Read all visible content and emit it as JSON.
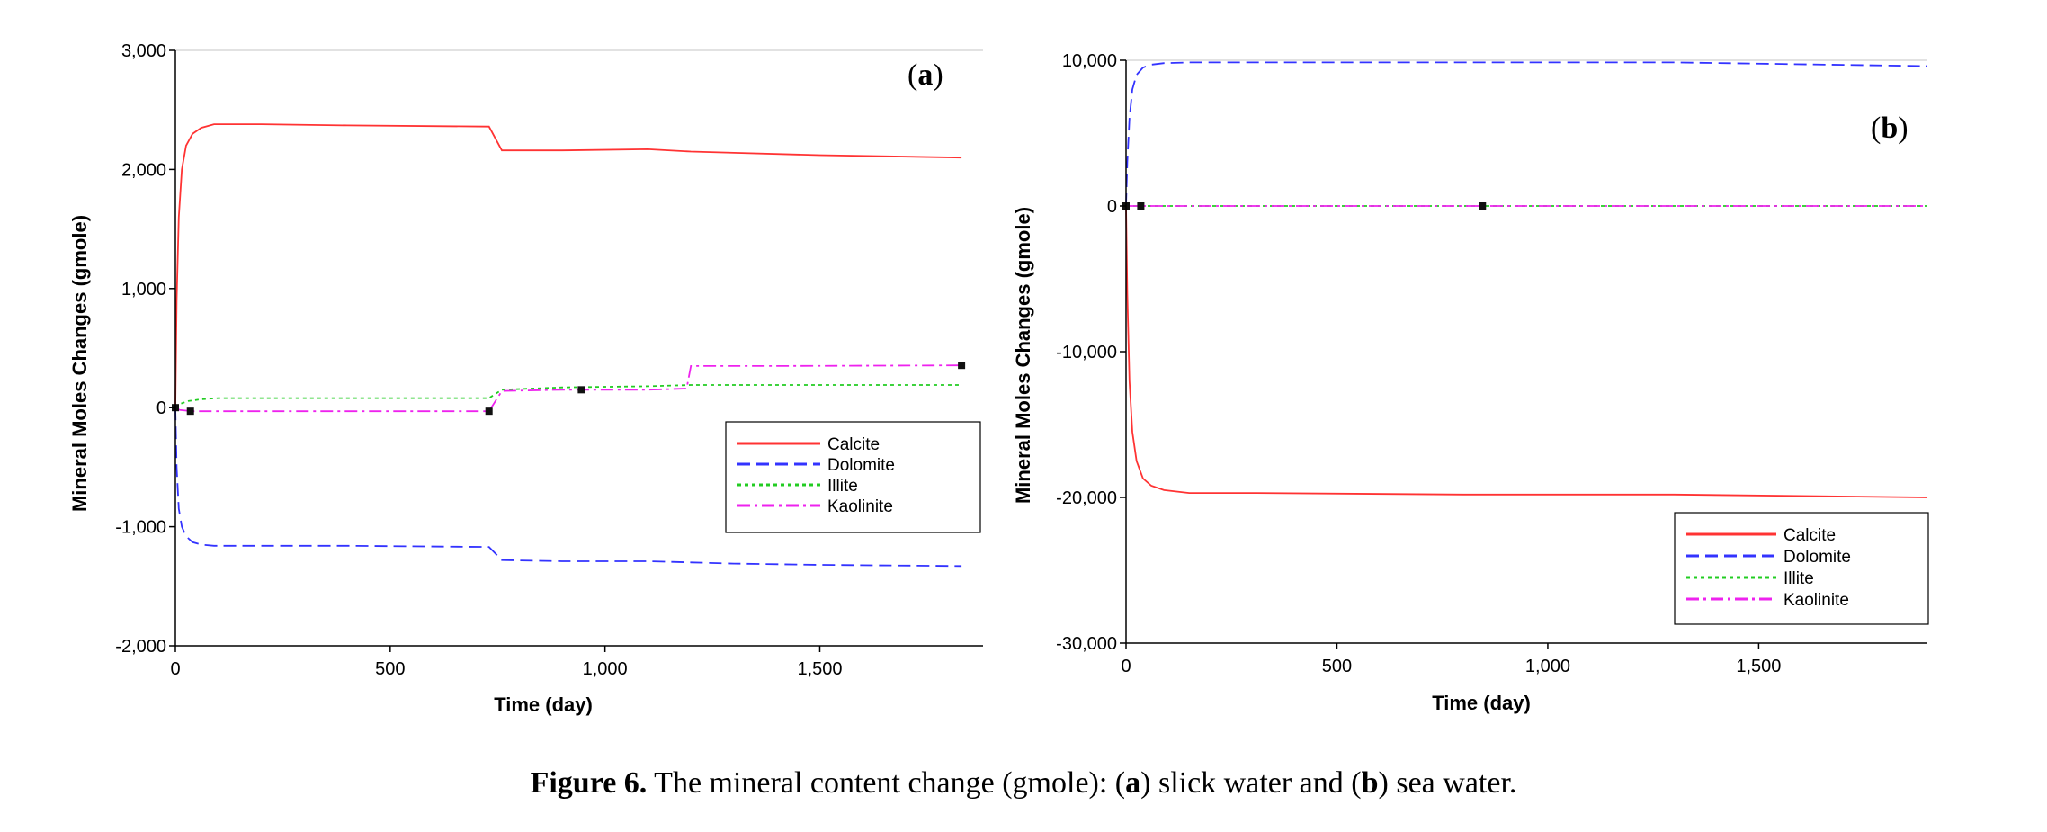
{
  "caption": {
    "label": "Figure 6.",
    "pre": " The mineral content change (gmole): (",
    "a": "a",
    "mid": ") slick water and (",
    "b": "b",
    "post": ") sea water."
  },
  "colors": {
    "Calcite": "#ff3333",
    "Dolomite": "#3333ff",
    "Illite": "#22cc22",
    "Kaolinite": "#ee22ee"
  },
  "chart_data": [
    {
      "type": "line",
      "panel_label": "a",
      "xlabel": "Time (day)",
      "ylabel": "Mineral Moles Changes (gmole)",
      "xlim": [
        0,
        1880
      ],
      "ylim": [
        -2000,
        3000
      ],
      "xticks": [
        0,
        500,
        1000,
        1500
      ],
      "xtick_labels": [
        "0",
        "500",
        "1,000",
        "1,500"
      ],
      "yticks": [
        -2000,
        -1000,
        0,
        1000,
        2000,
        3000
      ],
      "ytick_labels": [
        "-2,000",
        "-1,000",
        "0",
        "1,000",
        "2,000",
        "3,000"
      ],
      "legend_position": "lower-right",
      "series": [
        {
          "name": "Calcite",
          "dash": "solid",
          "x": [
            0,
            3,
            8,
            15,
            25,
            40,
            60,
            90,
            200,
            400,
            730,
            760,
            900,
            1100,
            1200,
            1300,
            1500,
            1830
          ],
          "y": [
            0,
            900,
            1600,
            2000,
            2200,
            2300,
            2350,
            2380,
            2380,
            2370,
            2360,
            2160,
            2160,
            2170,
            2150,
            2140,
            2120,
            2100
          ]
        },
        {
          "name": "Dolomite",
          "dash": "dashed",
          "x": [
            0,
            3,
            8,
            15,
            25,
            40,
            60,
            90,
            200,
            400,
            730,
            760,
            900,
            1100,
            1200,
            1300,
            1500,
            1830
          ],
          "y": [
            0,
            -500,
            -850,
            -1000,
            -1080,
            -1130,
            -1150,
            -1160,
            -1160,
            -1160,
            -1170,
            -1280,
            -1290,
            -1290,
            -1300,
            -1310,
            -1320,
            -1330
          ]
        },
        {
          "name": "Illite",
          "dash": "dotted",
          "x": [
            0,
            10,
            30,
            60,
            100,
            300,
            730,
            760,
            900,
            1100,
            1200,
            1400,
            1830
          ],
          "y": [
            0,
            30,
            55,
            70,
            80,
            80,
            80,
            150,
            170,
            180,
            190,
            190,
            190
          ]
        },
        {
          "name": "Kaolinite",
          "dash": "dashdot",
          "x": [
            0,
            10,
            40,
            100,
            300,
            730,
            760,
            900,
            1100,
            1190,
            1200,
            1400,
            1830
          ],
          "y": [
            0,
            -20,
            -30,
            -30,
            -30,
            -30,
            140,
            150,
            150,
            160,
            350,
            350,
            355
          ]
        }
      ],
      "markers": {
        "x": [
          0,
          35,
          730,
          945,
          1830
        ],
        "y": [
          0,
          -30,
          -30,
          150,
          355
        ]
      }
    },
    {
      "type": "line",
      "panel_label": "b",
      "xlabel": "Time (day)",
      "ylabel": "Mineral Moles Changes (gmole)",
      "xlim": [
        0,
        1900
      ],
      "ylim": [
        -30000,
        10000
      ],
      "xticks": [
        0,
        500,
        1000,
        1500
      ],
      "xtick_labels": [
        "0",
        "500",
        "1,000",
        "1,500"
      ],
      "yticks": [
        -30000,
        -20000,
        -10000,
        0,
        10000
      ],
      "ytick_labels": [
        "-30,000",
        "-20,000",
        "-10,000",
        "0",
        "10,000"
      ],
      "legend_position": "lower-right",
      "series": [
        {
          "name": "Calcite",
          "dash": "solid",
          "x": [
            0,
            3,
            8,
            15,
            25,
            40,
            60,
            90,
            150,
            300,
            800,
            1300,
            1900
          ],
          "y": [
            0,
            -6000,
            -12000,
            -15500,
            -17500,
            -18700,
            -19200,
            -19500,
            -19700,
            -19700,
            -19800,
            -19800,
            -20000
          ]
        },
        {
          "name": "Dolomite",
          "dash": "dashed",
          "x": [
            0,
            3,
            8,
            15,
            25,
            40,
            60,
            90,
            150,
            300,
            800,
            1300,
            1900
          ],
          "y": [
            0,
            3000,
            6000,
            8000,
            9000,
            9500,
            9700,
            9800,
            9850,
            9850,
            9850,
            9850,
            9600
          ]
        },
        {
          "name": "Illite",
          "dash": "dotted",
          "x": [
            0,
            1900
          ],
          "y": [
            0,
            0
          ]
        },
        {
          "name": "Kaolinite",
          "dash": "dashdot",
          "x": [
            0,
            1900
          ],
          "y": [
            0,
            0
          ]
        }
      ],
      "markers": {
        "x": [
          0,
          35,
          845
        ],
        "y": [
          0,
          0,
          0
        ]
      }
    }
  ]
}
